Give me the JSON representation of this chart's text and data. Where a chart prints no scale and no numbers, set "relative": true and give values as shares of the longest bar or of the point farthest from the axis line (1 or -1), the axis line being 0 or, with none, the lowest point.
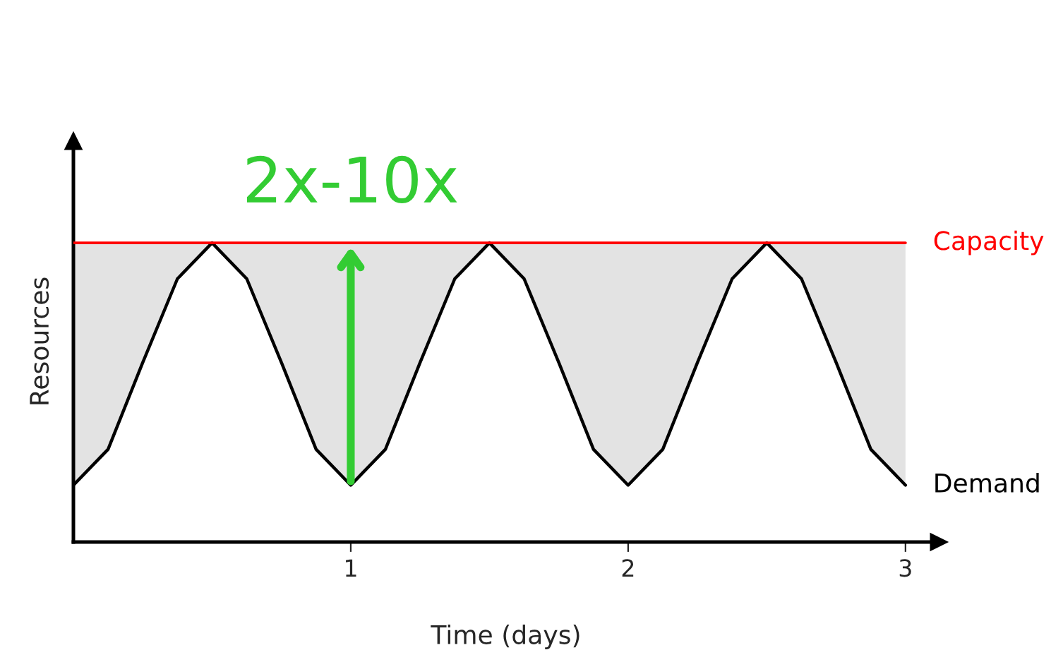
{
  "chart_data": {
    "type": "line",
    "relative": true,
    "xlabel": "Time (days)",
    "ylabel": "Resources",
    "x": [
      0,
      0.125,
      0.25,
      0.375,
      0.5,
      0.625,
      0.75,
      0.875,
      1,
      1.125,
      1.25,
      1.375,
      1.5,
      1.625,
      1.75,
      1.875,
      2,
      2.125,
      2.25,
      2.375,
      2.5,
      2.625,
      2.75,
      2.875,
      3
    ],
    "xlim": [
      0,
      3.12
    ],
    "xticks": [
      1,
      2,
      3
    ],
    "tick_labels": "x",
    "grid": false,
    "legend": false,
    "series": [
      {
        "name": "Demand",
        "color": "#000000",
        "values": [
          0.19,
          0.31,
          0.6,
          0.88,
          1.0,
          0.88,
          0.6,
          0.31,
          0.19,
          0.31,
          0.6,
          0.88,
          1.0,
          0.88,
          0.6,
          0.31,
          0.19,
          0.31,
          0.6,
          0.88,
          1.0,
          0.88,
          0.6,
          0.31,
          0.19
        ]
      },
      {
        "name": "Capacity",
        "color": "#ff0000",
        "values": [
          1,
          1,
          1,
          1,
          1,
          1,
          1,
          1,
          1,
          1,
          1,
          1,
          1,
          1,
          1,
          1,
          1,
          1,
          1,
          1,
          1,
          1,
          1,
          1,
          1
        ],
        "lower": [
          0.19,
          0.31,
          0.6,
          0.88,
          1.0,
          0.88,
          0.6,
          0.31,
          0.19,
          0.31,
          0.6,
          0.88,
          1.0,
          0.88,
          0.6,
          0.31,
          0.19,
          0.31,
          0.6,
          0.88,
          1.0,
          0.88,
          0.6,
          0.31,
          0.19
        ],
        "upper": [
          1,
          1,
          1,
          1,
          1,
          1,
          1,
          1,
          1,
          1,
          1,
          1,
          1,
          1,
          1,
          1,
          1,
          1,
          1,
          1,
          1,
          1,
          1,
          1,
          1
        ]
      }
    ],
    "annotations": [
      {
        "text": "2x-10x",
        "x": 1,
        "y": 1
      }
    ]
  }
}
